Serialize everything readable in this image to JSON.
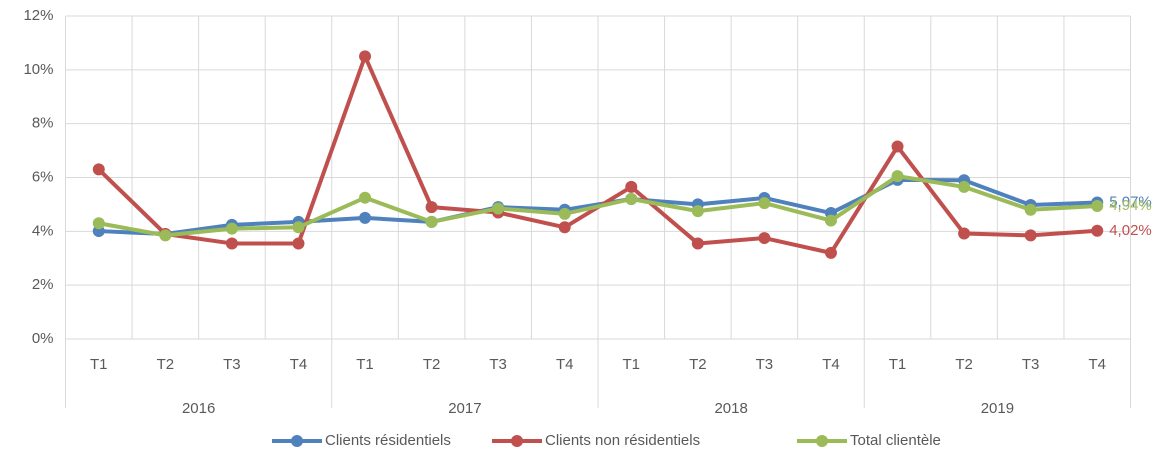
{
  "chart_data": {
    "type": "line",
    "categories": [
      "T1",
      "T2",
      "T3",
      "T4",
      "T1",
      "T2",
      "T3",
      "T4",
      "T1",
      "T2",
      "T3",
      "T4",
      "T1",
      "T2",
      "T3",
      "T4"
    ],
    "groups": [
      "2016",
      "2017",
      "2018",
      "2019"
    ],
    "series": [
      {
        "name": "Clients résidentiels",
        "color": "#4f81bd",
        "values": [
          4.01,
          3.9,
          4.24,
          4.35,
          4.5,
          4.35,
          4.9,
          4.8,
          5.2,
          5.0,
          5.24,
          4.68,
          5.91,
          5.9,
          4.98,
          5.07
        ],
        "end_label": "5,07%"
      },
      {
        "name": "Clients non résidentiels",
        "color": "#c0504d",
        "values": [
          6.3,
          3.9,
          3.55,
          3.55,
          10.5,
          4.9,
          4.7,
          4.15,
          5.65,
          3.55,
          3.75,
          3.2,
          7.15,
          3.92,
          3.85,
          4.02
        ],
        "end_label": "4,02%"
      },
      {
        "name": "Total clientèle",
        "color": "#9bbb59",
        "values": [
          4.3,
          3.85,
          4.1,
          4.15,
          5.25,
          4.35,
          4.85,
          4.65,
          5.2,
          4.75,
          5.05,
          4.4,
          6.05,
          5.65,
          4.8,
          4.94
        ],
        "end_label": "4,94%"
      }
    ],
    "ylim": [
      0,
      12
    ],
    "yticks": [
      {
        "value": 0,
        "label": "0%"
      },
      {
        "value": 2,
        "label": "2%"
      },
      {
        "value": 4,
        "label": "4%"
      },
      {
        "value": 6,
        "label": "6%"
      },
      {
        "value": 8,
        "label": "8%"
      },
      {
        "value": 10,
        "label": "10%"
      },
      {
        "value": 12,
        "label": "12%"
      }
    ],
    "grid": true,
    "legend": "bottom"
  }
}
